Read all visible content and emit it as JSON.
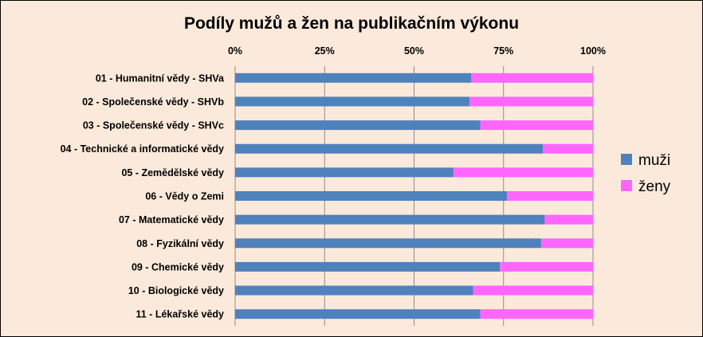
{
  "chart_data": {
    "type": "bar",
    "orientation": "horizontal",
    "stacked": "percent",
    "title": "Podíly mužů a žen na publikačním výkonu",
    "categories": [
      "01 - Humanitní vědy - SHVa",
      "02 - Společenské vědy - SHVb",
      "03 - Společenské vědy - SHVc",
      "04 - Technické a informatické vědy",
      "05 - Zemědělské vědy",
      "06 - Vědy o Zemi",
      "07 - Matematické vědy",
      "08 - Fyzikální vědy",
      "09 - Chemické vědy",
      "10 - Biologické vědy",
      "11 - Lékařské vědy"
    ],
    "series": [
      {
        "name": "muži",
        "color": "#4F81BD",
        "values": [
          66,
          65.5,
          68.5,
          86,
          61,
          76,
          86.5,
          85.5,
          74,
          66.5,
          68.5
        ]
      },
      {
        "name": "ženy",
        "color": "#FF66FF",
        "values": [
          34,
          34.5,
          31.5,
          14,
          39,
          24,
          13.5,
          14.5,
          26,
          33.5,
          31.5
        ]
      }
    ],
    "xlim": [
      0,
      100
    ],
    "x_ticks": [
      "0%",
      "25%",
      "50%",
      "75%",
      "100%"
    ],
    "x_axis_position": "top",
    "grid": true,
    "legend_position": "right",
    "background_color": "#FBEADB"
  }
}
